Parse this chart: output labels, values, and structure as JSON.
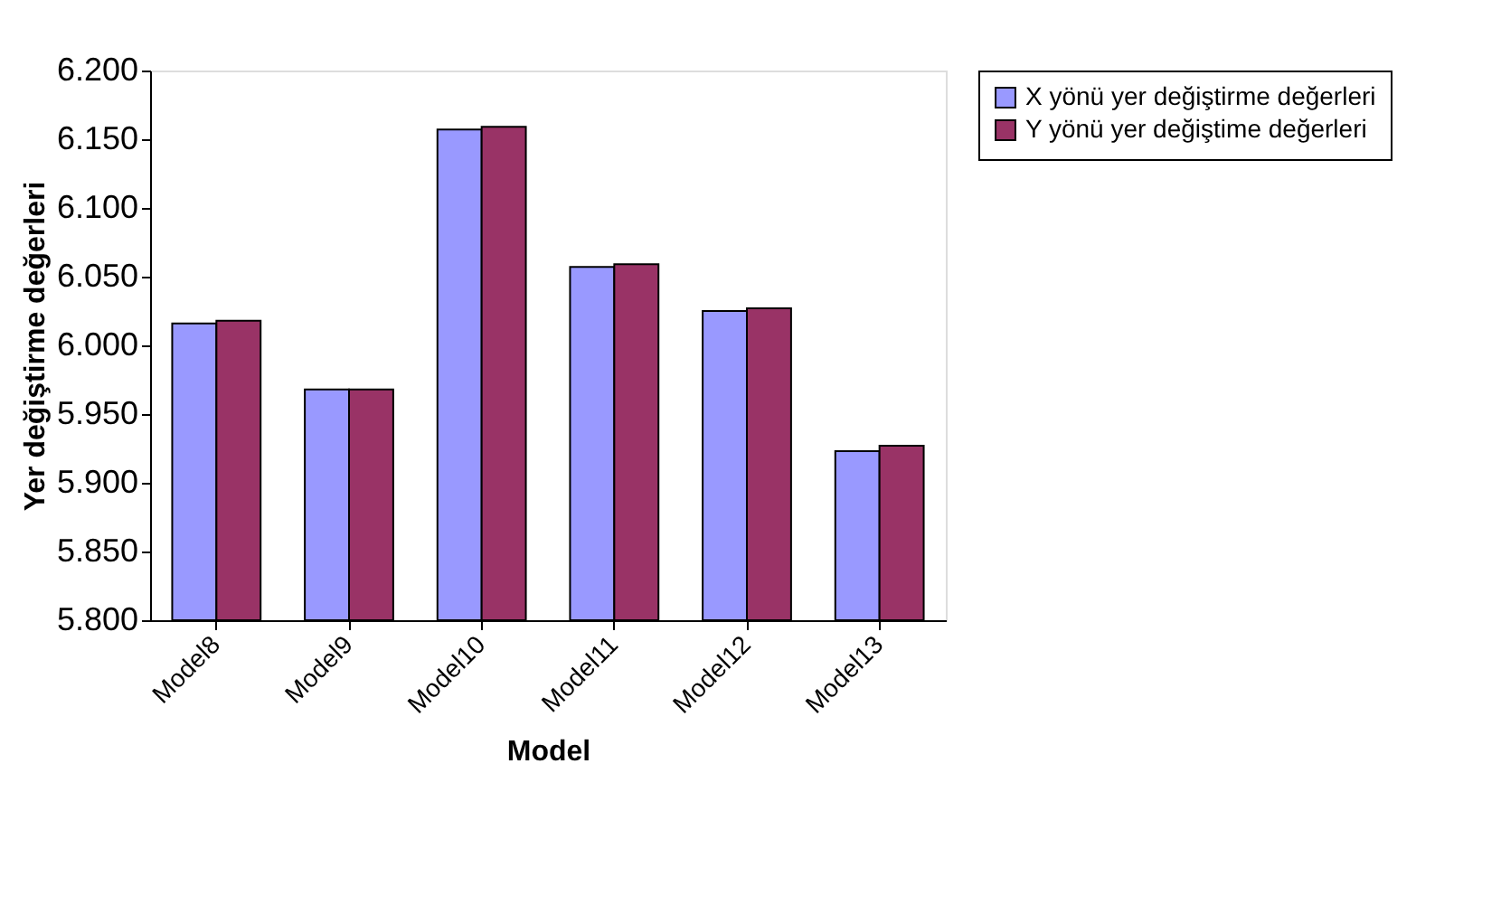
{
  "chart_data": {
    "type": "bar",
    "xlabel": "Model",
    "ylabel": "Yer değiştirme değerleri",
    "categories": [
      "Model8",
      "Model9",
      "Model10",
      "Model11",
      "Model12",
      "Model13"
    ],
    "series": [
      {
        "name": "X yönü yer değiştirme değerleri",
        "color": "#9999ff",
        "values": [
          6.016,
          5.968,
          6.157,
          6.057,
          6.025,
          5.923
        ]
      },
      {
        "name": "Y yönü yer değiştime değerleri",
        "color": "#993366",
        "values": [
          6.018,
          5.968,
          6.159,
          6.059,
          6.027,
          5.927
        ]
      }
    ],
    "ylim": [
      5.8,
      6.2
    ],
    "yticks": [
      {
        "value": 5.8,
        "label": "5.800"
      },
      {
        "value": 5.85,
        "label": "5.850"
      },
      {
        "value": 5.9,
        "label": "5.900"
      },
      {
        "value": 5.95,
        "label": "5.950"
      },
      {
        "value": 6.0,
        "label": "6.000"
      },
      {
        "value": 6.05,
        "label": "6.050"
      },
      {
        "value": 6.1,
        "label": "6.100"
      },
      {
        "value": 6.15,
        "label": "6.150"
      },
      {
        "value": 6.2,
        "label": "6.200"
      }
    ],
    "grid": false,
    "legend": "right"
  }
}
